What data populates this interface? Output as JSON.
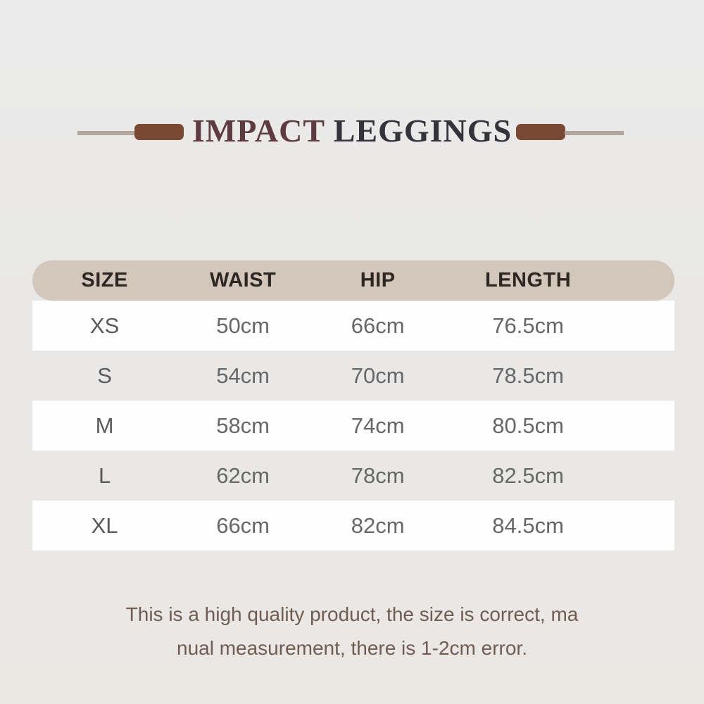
{
  "header": {
    "title_primary": "IMPACT",
    "title_secondary": "LEGGINGS",
    "title_primary_color": "#5e3b41",
    "title_secondary_color": "#34323a",
    "ornament_line_color": "#b2a79e",
    "ornament_bar_color": "#7a4933"
  },
  "size_table": {
    "header_bg": "#d3c6ba",
    "stripe_color": "#fefefe",
    "columns": [
      "SIZE",
      "WAIST",
      "HIP",
      "LENGTH"
    ],
    "rows": [
      {
        "size": "XS",
        "waist": "50cm",
        "hip": "66cm",
        "length": "76.5cm"
      },
      {
        "size": "S",
        "waist": "54cm",
        "hip": "70cm",
        "length": "78.5cm"
      },
      {
        "size": "M",
        "waist": "58cm",
        "hip": "74cm",
        "length": "80.5cm"
      },
      {
        "size": "L",
        "waist": "62cm",
        "hip": "78cm",
        "length": "82.5cm"
      },
      {
        "size": "XL",
        "waist": "66cm",
        "hip": "82cm",
        "length": "84.5cm"
      }
    ]
  },
  "footnote": {
    "line1": "This is a high quality product, the size is correct, ma",
    "line2": "nual measurement, there is 1-2cm error."
  },
  "chart_data": {
    "type": "table",
    "title": "IMPACT LEGGINGS",
    "columns": [
      "SIZE",
      "WAIST",
      "HIP",
      "LENGTH"
    ],
    "rows": [
      [
        "XS",
        "50cm",
        "66cm",
        "76.5cm"
      ],
      [
        "S",
        "54cm",
        "70cm",
        "78.5cm"
      ],
      [
        "M",
        "58cm",
        "74cm",
        "80.5cm"
      ],
      [
        "L",
        "62cm",
        "78cm",
        "82.5cm"
      ],
      [
        "XL",
        "66cm",
        "82cm",
        "84.5cm"
      ]
    ],
    "units": "cm",
    "note": "This is a high quality product, the size is correct, manual measurement, there is 1-2cm error."
  }
}
